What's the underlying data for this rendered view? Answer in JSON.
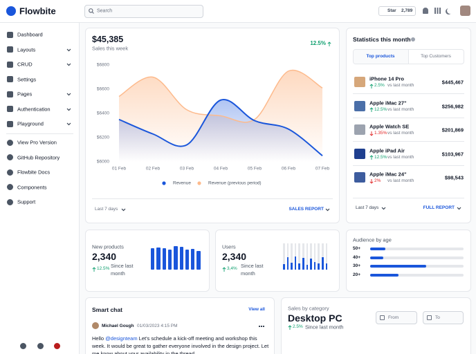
{
  "navbar": {
    "brand": "Flowbite",
    "search": "Search",
    "star": "Star",
    "star_count": "2,789"
  },
  "sidebar": {
    "menu": [
      "Dashboard",
      "Layouts",
      "CRUD",
      "Settings",
      "Pages",
      "Authentication",
      "Playground"
    ],
    "links": [
      "View Pro Version",
      "GitHub Repository",
      "Flowbite Docs",
      "Components",
      "Support"
    ]
  },
  "sales": {
    "amount": "$45,385",
    "subtitle": "Sales this week",
    "change": "12.5%",
    "period": "Last 7 days",
    "link": "SALES REPORT"
  },
  "chart_data": {
    "type": "area",
    "x": [
      "01 Feb",
      "02 Feb",
      "03 Feb",
      "04 Feb",
      "05 Feb",
      "06 Feb",
      "07 Feb"
    ],
    "series": [
      {
        "name": "Revenue",
        "color": "#1a56db",
        "values": [
          6350,
          6230,
          6140,
          6510,
          6340,
          6270,
          6050
        ]
      },
      {
        "name": "Revenue (previous period)",
        "color": "#fdba8c",
        "values": [
          6540,
          6700,
          6430,
          6380,
          6350,
          6750,
          6610
        ]
      }
    ],
    "ylim": [
      6000,
      6800
    ],
    "yticks": [
      {
        "value": 6000,
        "label": "$6000"
      },
      {
        "value": 6200,
        "label": "$6200"
      },
      {
        "value": 6400,
        "label": "$6400"
      },
      {
        "value": 6600,
        "label": "$6600"
      },
      {
        "value": 6800,
        "label": "$6800"
      }
    ],
    "legend": "bottom"
  },
  "statistics": {
    "title": "Statistics this month",
    "tabs": [
      "Top products",
      "Top Customers"
    ],
    "products": [
      {
        "name": "iPhone 14 Pro",
        "change": "2.5%",
        "note": "vs last month",
        "price": "$445,467",
        "color": "#0e9f6e"
      },
      {
        "name": "Apple iMac 27\"",
        "change": "12.5%",
        "note": "vs last month",
        "price": "$256,982",
        "color": "#0e9f6e"
      },
      {
        "name": "Apple Watch SE",
        "change": "1.35%",
        "note": "vs last month",
        "price": "$201,869",
        "color": "#e02424"
      },
      {
        "name": "Apple iPad Air",
        "change": "12.5%",
        "note": "vs last month",
        "price": "$103,967",
        "color": "#0e9f6e"
      },
      {
        "name": "Apple iMac 24\"",
        "change": "2%",
        "note": "vs last month",
        "price": "$98,543",
        "color": "#e02424"
      }
    ],
    "period": "Last 7 days",
    "link": "FULL REPORT"
  },
  "new_products": {
    "title": "New products",
    "value": "2,340",
    "change": "12.5%",
    "note": "Since last month",
    "bars": [
      91,
      94,
      92,
      85,
      100,
      97,
      85,
      88,
      80
    ]
  },
  "users": {
    "title": "Users",
    "value": "2,340",
    "change": "3,4%",
    "note": "Since last month",
    "bars": [
      40,
      95,
      55,
      100,
      45,
      90,
      35,
      85,
      60,
      50,
      95,
      45
    ]
  },
  "audience": {
    "title": "Audience by age",
    "groups": [
      {
        "label": "50+",
        "value": 16
      },
      {
        "label": "40+",
        "value": 14
      },
      {
        "label": "30+",
        "value": 60
      },
      {
        "label": "20+",
        "value": 30
      }
    ]
  },
  "chat": {
    "title": "Smart chat",
    "link": "View all",
    "author": "Michael Gough",
    "time": "01/03/2023 4:15 PM",
    "greeting": "Hello",
    "mention": "@designteam",
    "message": "Let's schedule a kick-off meeting and workshop this week. It would be great to gather everyone involved in the design project. Let me know about your availability in the thread."
  },
  "category": {
    "title": "Sales by category",
    "name": "Desktop PC",
    "change": "2.5%",
    "note": "Since last month",
    "from": "From",
    "to": "To"
  }
}
